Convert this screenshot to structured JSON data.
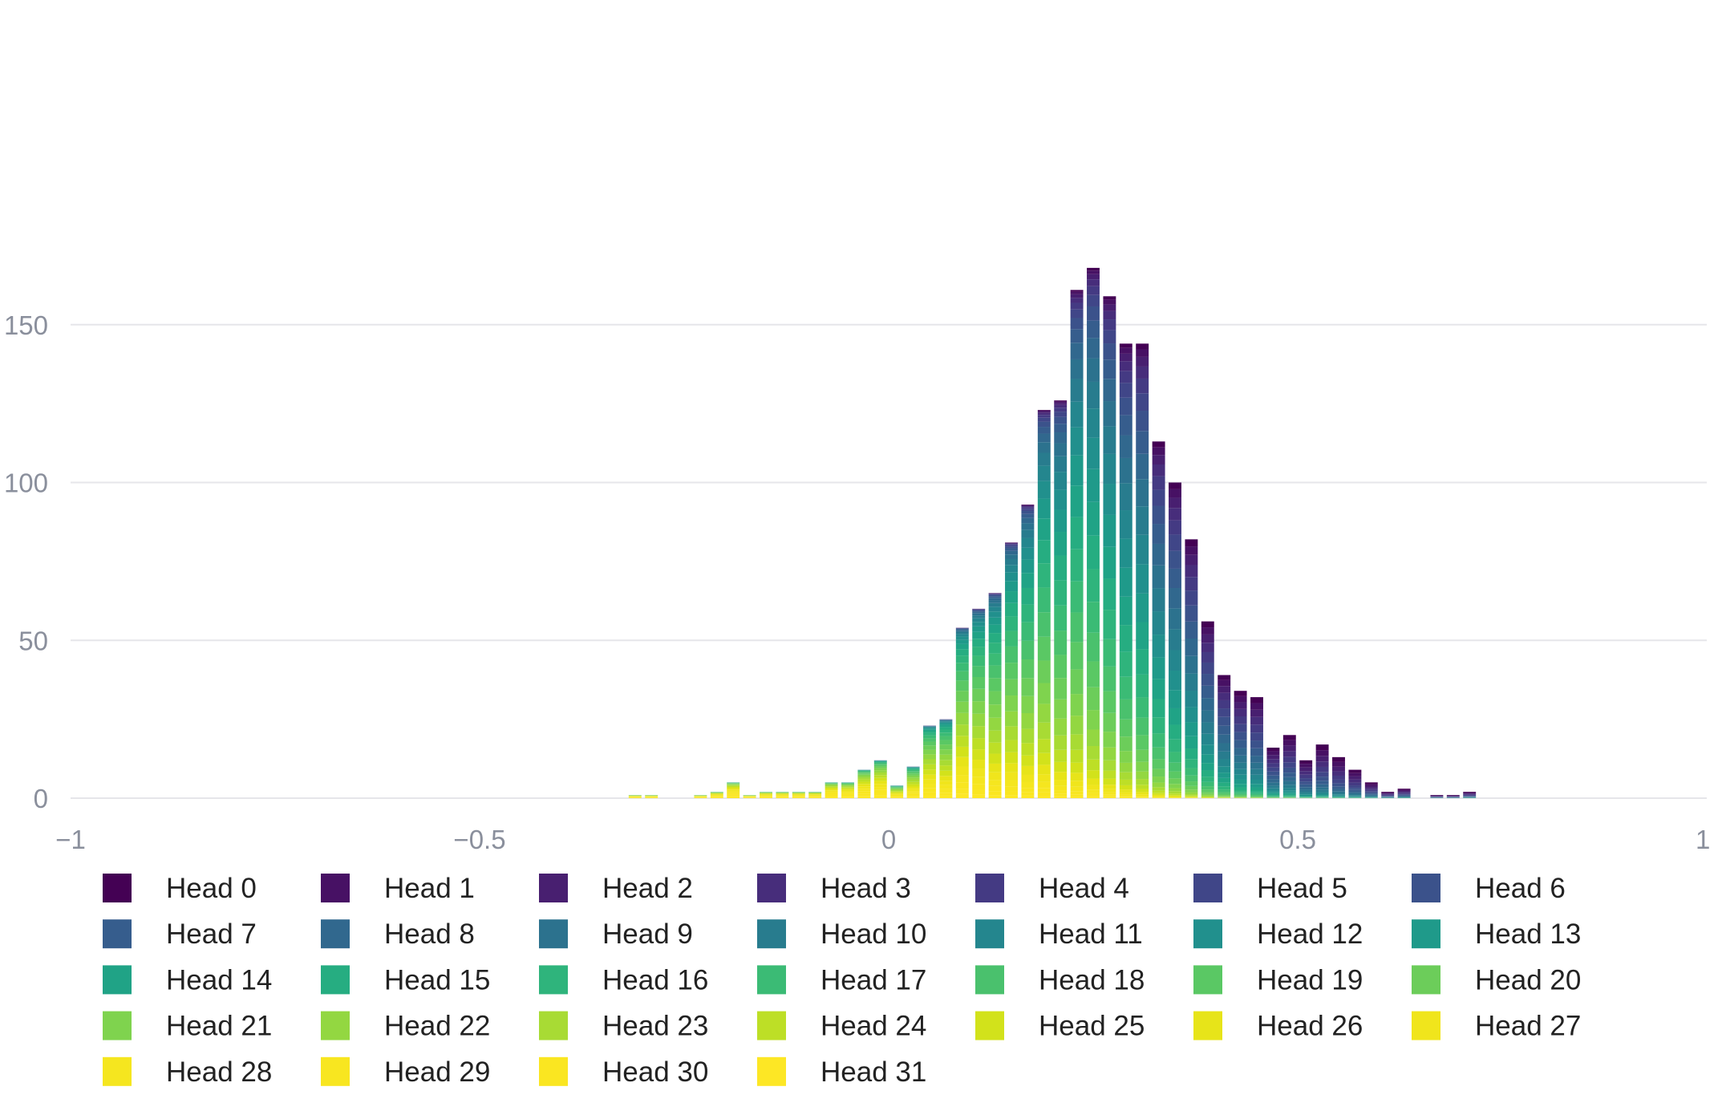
{
  "chart_data": {
    "type": "bar",
    "stacked": true,
    "xlim": [
      -1,
      1
    ],
    "ylim": [
      0,
      180
    ],
    "bin_width": 0.02,
    "x_ticks": [
      -1,
      -0.5,
      0,
      0.5,
      1
    ],
    "x_tick_labels": [
      "−1",
      "−0.5",
      "0",
      "0.5",
      "1"
    ],
    "y_ticks": [
      0,
      50,
      100,
      150
    ],
    "y_tick_labels": [
      "0",
      "50",
      "100",
      "150"
    ],
    "grid": "horizontal",
    "legend_position": "bottom",
    "x": [
      -0.31,
      -0.29,
      -0.23,
      -0.21,
      -0.19,
      -0.17,
      -0.15,
      -0.13,
      -0.11,
      -0.09,
      -0.07,
      -0.05,
      -0.03,
      -0.01,
      0.01,
      0.03,
      0.05,
      0.07,
      0.09,
      0.11,
      0.13,
      0.15,
      0.17,
      0.19,
      0.21,
      0.23,
      0.25,
      0.27,
      0.29,
      0.31,
      0.33,
      0.35,
      0.37,
      0.39,
      0.41,
      0.43,
      0.45,
      0.47,
      0.49,
      0.51,
      0.53,
      0.55,
      0.57,
      0.59,
      0.61,
      0.63,
      0.67,
      0.69,
      0.71
    ],
    "totals": [
      1,
      1,
      1,
      2,
      5,
      1,
      2,
      2,
      2,
      2,
      5,
      5,
      9,
      12,
      4,
      10,
      23,
      25,
      54,
      60,
      65,
      81,
      93,
      123,
      126,
      161,
      168,
      159,
      144,
      144,
      113,
      100,
      82,
      56,
      39,
      34,
      32,
      16,
      20,
      12,
      17,
      13,
      9,
      5,
      2,
      3,
      1,
      1,
      2
    ],
    "series_colors": [
      "#440154",
      "#471164",
      "#481f70",
      "#472d7b",
      "#443a83",
      "#404688",
      "#3b528b",
      "#365d8d",
      "#31688e",
      "#2c728e",
      "#287c8e",
      "#24868e",
      "#21908d",
      "#1f9a8a",
      "#20a386",
      "#26ad81",
      "#2fb47c",
      "#3bbb75",
      "#4ac16d",
      "#5ac864",
      "#6ccd5a",
      "#7fd34e",
      "#93d741",
      "#a8db34",
      "#bddf26",
      "#d2e21b",
      "#e7e419",
      "#f0e51c",
      "#f5e61f",
      "#f8e620",
      "#fae621",
      "#fde725"
    ],
    "series": [
      {
        "name": "Head 0"
      },
      {
        "name": "Head 1"
      },
      {
        "name": "Head 2"
      },
      {
        "name": "Head 3"
      },
      {
        "name": "Head 4"
      },
      {
        "name": "Head 5"
      },
      {
        "name": "Head 6"
      },
      {
        "name": "Head 7"
      },
      {
        "name": "Head 8"
      },
      {
        "name": "Head 9"
      },
      {
        "name": "Head 10"
      },
      {
        "name": "Head 11"
      },
      {
        "name": "Head 12"
      },
      {
        "name": "Head 13"
      },
      {
        "name": "Head 14"
      },
      {
        "name": "Head 15"
      },
      {
        "name": "Head 16"
      },
      {
        "name": "Head 17"
      },
      {
        "name": "Head 18"
      },
      {
        "name": "Head 19"
      },
      {
        "name": "Head 20"
      },
      {
        "name": "Head 21"
      },
      {
        "name": "Head 22"
      },
      {
        "name": "Head 23"
      },
      {
        "name": "Head 24"
      },
      {
        "name": "Head 25"
      },
      {
        "name": "Head 26"
      },
      {
        "name": "Head 27"
      },
      {
        "name": "Head 28"
      },
      {
        "name": "Head 29"
      },
      {
        "name": "Head 30"
      },
      {
        "name": "Head 31"
      }
    ]
  }
}
